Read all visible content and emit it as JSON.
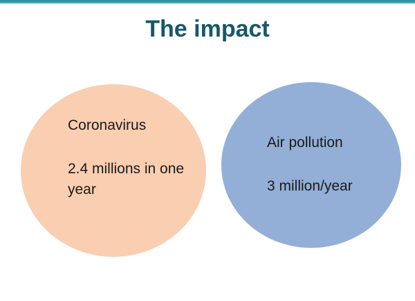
{
  "slide": {
    "title": "The impact",
    "colors": {
      "title": "#17576a",
      "top_rule": "#3aa0ad",
      "left_circle": "#f9ceb1",
      "right_circle": "#93afd7"
    },
    "circles": [
      {
        "label": "Coronavirus",
        "stat": "2.4 millions in one year"
      },
      {
        "label": "Air pollution",
        "stat": "3 million/year"
      }
    ]
  }
}
